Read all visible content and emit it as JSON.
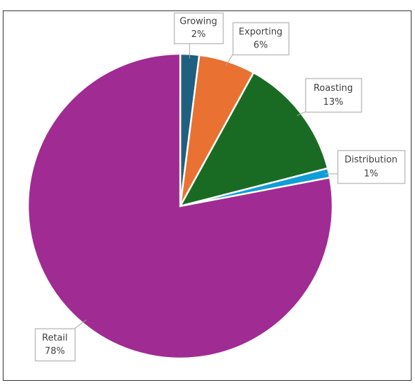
{
  "chart_data": {
    "type": "pie",
    "categories": [
      "Growing",
      "Exporting",
      "Roasting",
      "Distribution",
      "Retail"
    ],
    "values": [
      2,
      6,
      13,
      1,
      78
    ],
    "value_labels": [
      "2%",
      "6%",
      "13%",
      "1%",
      "78%"
    ],
    "colors": [
      "#1f5f7f",
      "#e97132",
      "#196b24",
      "#0f9ed5",
      "#a02b93"
    ]
  }
}
